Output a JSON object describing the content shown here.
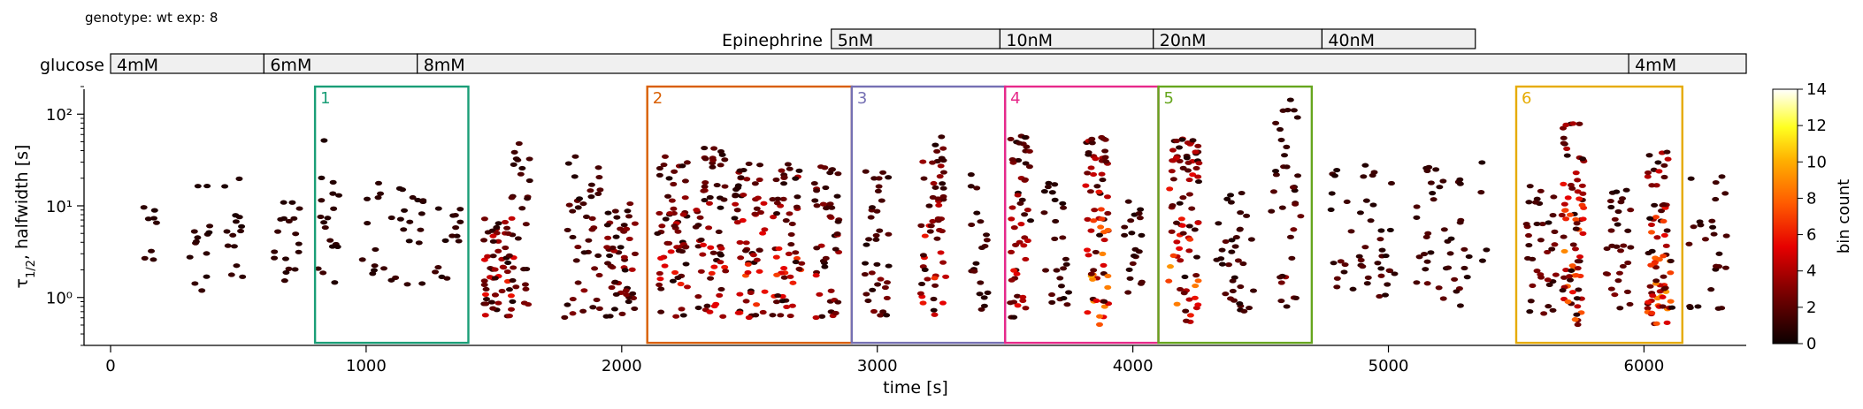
{
  "header": {
    "info": "genotype: wt  exp: 8"
  },
  "stimuli": {
    "epinephrine": {
      "label": "Epinephrine",
      "segments": [
        {
          "label": "5nM",
          "start": 2820,
          "end": 3480
        },
        {
          "label": "10nM",
          "start": 3480,
          "end": 4080
        },
        {
          "label": "20nM",
          "start": 4080,
          "end": 4740
        },
        {
          "label": "40nM",
          "start": 4740,
          "end": 5340
        }
      ]
    },
    "glucose": {
      "label": "glucose",
      "segments": [
        {
          "label": "4mM",
          "start": 0,
          "end": 600
        },
        {
          "label": "6mM",
          "start": 600,
          "end": 1200
        },
        {
          "label": "8mM",
          "start": 1200,
          "end": 5940
        },
        {
          "label": "4mM",
          "start": 5940,
          "end": 6400
        }
      ]
    }
  },
  "colorbar": {
    "label": "bin count",
    "ticks": [
      "0",
      "2",
      "4",
      "6",
      "8",
      "10",
      "12",
      "14"
    ],
    "min": 0,
    "max": 14
  },
  "chart_data": {
    "type": "heatmap",
    "title": "",
    "xlabel": "time [s]",
    "ylabel": "τ1/2, halfwidth [s]",
    "ylabel_main": "τ",
    "ylabel_sub": "1/2",
    "ylabel_rest": ", halfwidth [s]",
    "xlim": [
      0,
      6400
    ],
    "ylim": [
      0.3,
      200
    ],
    "yscale": "log",
    "xticks": [
      0,
      1000,
      2000,
      3000,
      4000,
      5000,
      6000
    ],
    "xtick_labels": [
      "0",
      "1000",
      "2000",
      "3000",
      "4000",
      "5000",
      "6000"
    ],
    "yticks": [
      1,
      10,
      100
    ],
    "ytick_labels": [
      "10⁰",
      "10¹",
      "10²"
    ],
    "grid": false,
    "regions": [
      {
        "label": "1",
        "start": 800,
        "end": 1400,
        "ymin": 0.32,
        "ymax": 200,
        "color": "#1a9e77"
      },
      {
        "label": "2",
        "start": 2100,
        "end": 2900,
        "ymin": 0.32,
        "ymax": 200,
        "color": "#d95f02"
      },
      {
        "label": "3",
        "start": 2900,
        "end": 3500,
        "ymin": 0.32,
        "ymax": 200,
        "color": "#7570b3"
      },
      {
        "label": "4",
        "start": 3500,
        "end": 4100,
        "ymin": 0.32,
        "ymax": 200,
        "color": "#e7298a"
      },
      {
        "label": "5",
        "start": 4100,
        "end": 4700,
        "ymin": 0.32,
        "ymax": 200,
        "color": "#66a61e"
      },
      {
        "label": "6",
        "start": 5500,
        "end": 6150,
        "ymin": 0.32,
        "ymax": 200,
        "color": "#e6ab02"
      }
    ],
    "density_clusters": [
      {
        "t": 150,
        "tw": 60,
        "ylo": 1.8,
        "yhi": 12,
        "n": 8,
        "peak": 1
      },
      {
        "t": 350,
        "tw": 80,
        "ylo": 0.8,
        "yhi": 60,
        "n": 14,
        "peak": 1
      },
      {
        "t": 480,
        "tw": 80,
        "ylo": 0.9,
        "yhi": 20,
        "n": 14,
        "peak": 1
      },
      {
        "t": 700,
        "tw": 120,
        "ylo": 1.5,
        "yhi": 15,
        "n": 18,
        "peak": 1
      },
      {
        "t": 850,
        "tw": 100,
        "ylo": 1.3,
        "yhi": 55,
        "n": 18,
        "peak": 1
      },
      {
        "t": 1100,
        "tw": 250,
        "ylo": 1.3,
        "yhi": 20,
        "n": 30,
        "peak": 1
      },
      {
        "t": 1320,
        "tw": 100,
        "ylo": 1.5,
        "yhi": 15,
        "n": 14,
        "peak": 1
      },
      {
        "t": 1520,
        "tw": 120,
        "ylo": 0.6,
        "yhi": 8,
        "n": 60,
        "peak": 6
      },
      {
        "t": 1600,
        "tw": 80,
        "ylo": 0.8,
        "yhi": 50,
        "n": 25,
        "peak": 3
      },
      {
        "t": 1850,
        "tw": 150,
        "ylo": 0.6,
        "yhi": 40,
        "n": 40,
        "peak": 3
      },
      {
        "t": 2000,
        "tw": 120,
        "ylo": 0.6,
        "yhi": 12,
        "n": 50,
        "peak": 4
      },
      {
        "t": 2200,
        "tw": 120,
        "ylo": 0.6,
        "yhi": 35,
        "n": 60,
        "peak": 6
      },
      {
        "t": 2350,
        "tw": 120,
        "ylo": 0.6,
        "yhi": 50,
        "n": 60,
        "peak": 6
      },
      {
        "t": 2500,
        "tw": 120,
        "ylo": 0.6,
        "yhi": 30,
        "n": 60,
        "peak": 7
      },
      {
        "t": 2650,
        "tw": 120,
        "ylo": 0.6,
        "yhi": 30,
        "n": 55,
        "peak": 7
      },
      {
        "t": 2800,
        "tw": 100,
        "ylo": 0.6,
        "yhi": 30,
        "n": 45,
        "peak": 5
      },
      {
        "t": 3000,
        "tw": 100,
        "ylo": 0.6,
        "yhi": 25,
        "n": 35,
        "peak": 3
      },
      {
        "t": 3220,
        "tw": 100,
        "ylo": 0.6,
        "yhi": 60,
        "n": 55,
        "peak": 7
      },
      {
        "t": 3400,
        "tw": 80,
        "ylo": 0.7,
        "yhi": 40,
        "n": 20,
        "peak": 2
      },
      {
        "t": 3560,
        "tw": 80,
        "ylo": 0.6,
        "yhi": 60,
        "n": 50,
        "peak": 6
      },
      {
        "t": 3700,
        "tw": 100,
        "ylo": 0.8,
        "yhi": 20,
        "n": 25,
        "peak": 2
      },
      {
        "t": 3860,
        "tw": 90,
        "ylo": 0.5,
        "yhi": 60,
        "n": 70,
        "peak": 10
      },
      {
        "t": 4000,
        "tw": 80,
        "ylo": 0.9,
        "yhi": 12,
        "n": 20,
        "peak": 2
      },
      {
        "t": 4200,
        "tw": 120,
        "ylo": 0.5,
        "yhi": 60,
        "n": 80,
        "peak": 10
      },
      {
        "t": 4400,
        "tw": 150,
        "ylo": 0.7,
        "yhi": 15,
        "n": 35,
        "peak": 2
      },
      {
        "t": 4600,
        "tw": 120,
        "ylo": 0.6,
        "yhi": 150,
        "n": 35,
        "peak": 3
      },
      {
        "t": 4900,
        "tw": 250,
        "ylo": 0.9,
        "yhi": 30,
        "n": 45,
        "peak": 2
      },
      {
        "t": 5250,
        "tw": 300,
        "ylo": 0.8,
        "yhi": 30,
        "n": 45,
        "peak": 2
      },
      {
        "t": 5600,
        "tw": 120,
        "ylo": 0.6,
        "yhi": 20,
        "n": 35,
        "peak": 3
      },
      {
        "t": 5720,
        "tw": 90,
        "ylo": 0.5,
        "yhi": 80,
        "n": 75,
        "peak": 10
      },
      {
        "t": 5900,
        "tw": 100,
        "ylo": 0.7,
        "yhi": 15,
        "n": 30,
        "peak": 3
      },
      {
        "t": 6060,
        "tw": 100,
        "ylo": 0.5,
        "yhi": 40,
        "n": 75,
        "peak": 10
      },
      {
        "t": 6250,
        "tw": 150,
        "ylo": 0.7,
        "yhi": 25,
        "n": 25,
        "peak": 2
      }
    ]
  }
}
